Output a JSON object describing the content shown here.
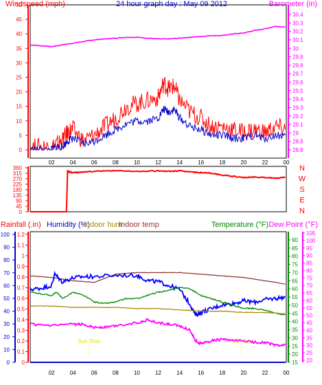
{
  "chart_data": [
    {
      "type": "line",
      "title": "24 hour graph day : May 09 2012",
      "legend": [
        "Windspeed (mph)",
        "Barometer (in)"
      ],
      "x_ticks": [
        "02",
        "04",
        "06",
        "08",
        "10",
        "12",
        "14",
        "16",
        "18",
        "20",
        "22",
        "00"
      ],
      "left_axis": {
        "label": "Windspeed (mph)",
        "ticks": [
          "50",
          "45",
          "40",
          "35",
          "30",
          "25",
          "20",
          "15",
          "10",
          "5",
          "0"
        ],
        "range": [
          0,
          50
        ]
      },
      "right_axis": {
        "label": "Barometer (in)",
        "ticks": [
          "30.4",
          "30.3",
          "30.2",
          "30.1",
          "30",
          "29.9",
          "29.8",
          "29.7",
          "29.6",
          "29.5",
          "29.4",
          "29.3",
          "29.2",
          "29.1",
          "29",
          "28.9",
          "28.8"
        ],
        "range": [
          28.74,
          30.46
        ]
      },
      "x_range": [
        0,
        24
      ],
      "series": [
        {
          "name": "Barometer (in)",
          "color": "#ff00ff",
          "axis": "right",
          "x": [
            0,
            1,
            2,
            3,
            4,
            5,
            6,
            7,
            8,
            9,
            10,
            11,
            12,
            13,
            14,
            15,
            16,
            17,
            18,
            19,
            20,
            21,
            22,
            23,
            23.9
          ],
          "y": [
            30.04,
            30.03,
            30.02,
            30.04,
            30.06,
            30.08,
            30.1,
            30.11,
            30.12,
            30.13,
            30.13,
            30.12,
            30.11,
            30.11,
            30.12,
            30.13,
            30.14,
            30.15,
            30.15,
            30.17,
            30.18,
            30.21,
            30.23,
            30.26,
            30.25
          ]
        },
        {
          "name": "Wind gust",
          "color": "#ff0000",
          "axis": "left",
          "x": [
            0,
            1,
            2,
            2.5,
            3,
            3.5,
            4,
            5,
            6,
            7,
            8,
            9,
            10,
            11,
            12,
            12.5,
            13,
            13.5,
            14,
            15,
            16,
            17,
            18,
            19,
            20,
            21,
            22,
            23,
            23.9
          ],
          "y": [
            1,
            1,
            1,
            2,
            3,
            6,
            7,
            3,
            5,
            8,
            11,
            15,
            16,
            17,
            18,
            23,
            21,
            22,
            17,
            13,
            11,
            8,
            8,
            7,
            6,
            7,
            6,
            8,
            7
          ]
        },
        {
          "name": "Wind speed",
          "color": "#0000cc",
          "axis": "left",
          "x": [
            0,
            1,
            2,
            2.5,
            3,
            3.5,
            4,
            5,
            6,
            7,
            8,
            9,
            10,
            11,
            12,
            12.5,
            13,
            13.5,
            14,
            15,
            16,
            17,
            18,
            19,
            20,
            21,
            22,
            23,
            23.9
          ],
          "y": [
            0,
            0,
            0,
            1,
            1,
            3,
            4,
            2,
            3,
            5,
            7,
            9,
            10,
            10,
            11,
            14,
            13,
            14,
            11,
            8,
            7,
            5,
            5,
            4,
            4,
            5,
            4,
            5,
            5
          ]
        }
      ]
    },
    {
      "type": "line",
      "title": "",
      "y_ticks": [
        "360",
        "315",
        "270",
        "225",
        "180",
        "135",
        "90",
        "45",
        "0"
      ],
      "y_range": [
        0,
        360
      ],
      "compass": [
        "N",
        "W",
        "S",
        "E",
        "N"
      ],
      "x_range": [
        0,
        24
      ],
      "series": [
        {
          "name": "Wind direction",
          "color": "#ff0000",
          "x": [
            0,
            2.5,
            3.4,
            3.5,
            4,
            5,
            6,
            8,
            10,
            12,
            13,
            14,
            15,
            16,
            17,
            18,
            19,
            20,
            21,
            22,
            23,
            23.9
          ],
          "y": [
            0,
            0,
            0,
            330,
            320,
            325,
            330,
            335,
            330,
            335,
            330,
            335,
            325,
            320,
            315,
            300,
            290,
            280,
            285,
            280,
            275,
            280
          ]
        }
      ]
    },
    {
      "type": "line",
      "title": "",
      "legend": [
        "Rainfall (.in)",
        "Humidity (%)",
        "Indoor hum",
        "Indoor temp",
        "Temperature (°F)",
        "Dew Point (°F)"
      ],
      "left_axes": {
        "rain": {
          "ticks": [
            "1.2",
            "1.1",
            "1",
            "0.9",
            "0.8",
            "0.7",
            "0.6",
            "0.5",
            "0.4",
            "0.3",
            "0.2",
            "0.1",
            "0"
          ],
          "range": [
            0,
            1.2
          ]
        },
        "humidity": {
          "ticks": [
            "100",
            "90",
            "80",
            "70",
            "60",
            "50",
            "40",
            "30",
            "20",
            "10",
            "0"
          ],
          "range": [
            0,
            100
          ]
        }
      },
      "right_axes": {
        "temperature": {
          "ticks": [
            "90",
            "85",
            "80",
            "75",
            "70",
            "65",
            "60",
            "55",
            "50",
            "45",
            "40",
            "35",
            "30",
            "25",
            "20",
            "15"
          ],
          "range": [
            13,
            94
          ]
        },
        "dew_point": {
          "ticks": [
            "105",
            "100",
            "95",
            "90",
            "85",
            "80",
            "75",
            "70",
            "65",
            "60",
            "55",
            "50",
            "45",
            "40",
            "35",
            "30",
            "25",
            "20"
          ],
          "range": [
            20,
            108
          ]
        }
      },
      "annotations": [
        {
          "text": "Sun Rise",
          "x": 5.5
        },
        {
          "text": "Sun Set",
          "x": 19.8
        }
      ],
      "x_range": [
        0,
        24
      ],
      "series": [
        {
          "name": "Indoor temp",
          "color": "#993333",
          "x": [
            0,
            2,
            4,
            6,
            8,
            10,
            12,
            14,
            16,
            18,
            20,
            22,
            23.9
          ],
          "y": [
            68,
            67,
            65,
            64,
            69,
            70,
            70,
            70,
            69,
            68,
            67,
            65,
            63
          ]
        },
        {
          "name": "Humidity (%)",
          "color": "#0000ff",
          "x": [
            0,
            1,
            2,
            2.3,
            3,
            4,
            5,
            6,
            8,
            10,
            11,
            12,
            13,
            14,
            15,
            15.5,
            16,
            17,
            18,
            19,
            20,
            21,
            22,
            23,
            23.9
          ],
          "y": [
            57,
            58,
            60,
            69,
            63,
            66,
            67,
            67,
            68,
            68,
            64,
            63,
            60,
            57,
            45,
            37,
            39,
            42,
            45,
            46,
            48,
            47,
            49,
            50,
            51
          ]
        },
        {
          "name": "Temperature (°F)",
          "color": "#008800",
          "x": [
            0,
            1,
            2,
            2.5,
            3,
            4,
            5,
            6,
            7,
            8,
            9,
            10,
            11,
            12,
            13,
            14,
            15,
            16,
            17,
            18,
            19,
            20,
            21,
            22,
            23,
            23.9
          ],
          "y": [
            58,
            57,
            56,
            58,
            54,
            58,
            56,
            52,
            51,
            52,
            54,
            54,
            56,
            58,
            59,
            61,
            60,
            56,
            54,
            52,
            50,
            48,
            48,
            47,
            45,
            44
          ]
        },
        {
          "name": "Indoor hum",
          "color": "#aa8800",
          "x": [
            0,
            2,
            4,
            6,
            8,
            10,
            12,
            14,
            16,
            18,
            20,
            22,
            23.9
          ],
          "y": [
            44,
            44,
            43,
            43,
            43,
            42,
            42,
            41,
            40,
            40,
            39,
            39,
            38
          ]
        },
        {
          "name": "Dew Point (°F)",
          "color": "#ff00ff",
          "x": [
            0,
            2,
            4,
            5,
            6,
            7,
            8,
            10,
            11,
            12,
            13,
            14,
            15,
            15.5,
            16,
            17,
            18,
            19,
            20,
            21,
            22,
            23,
            23.9
          ],
          "y": [
            44,
            43,
            44,
            44,
            42,
            42,
            43,
            45,
            47,
            45,
            44,
            43,
            40,
            33,
            31,
            33,
            34,
            33,
            33,
            32,
            32,
            30,
            30
          ]
        },
        {
          "name": "Rainfall (.in)",
          "color": "#0000cc",
          "x": [
            0,
            23.9
          ],
          "y": [
            0,
            0
          ]
        }
      ]
    }
  ]
}
